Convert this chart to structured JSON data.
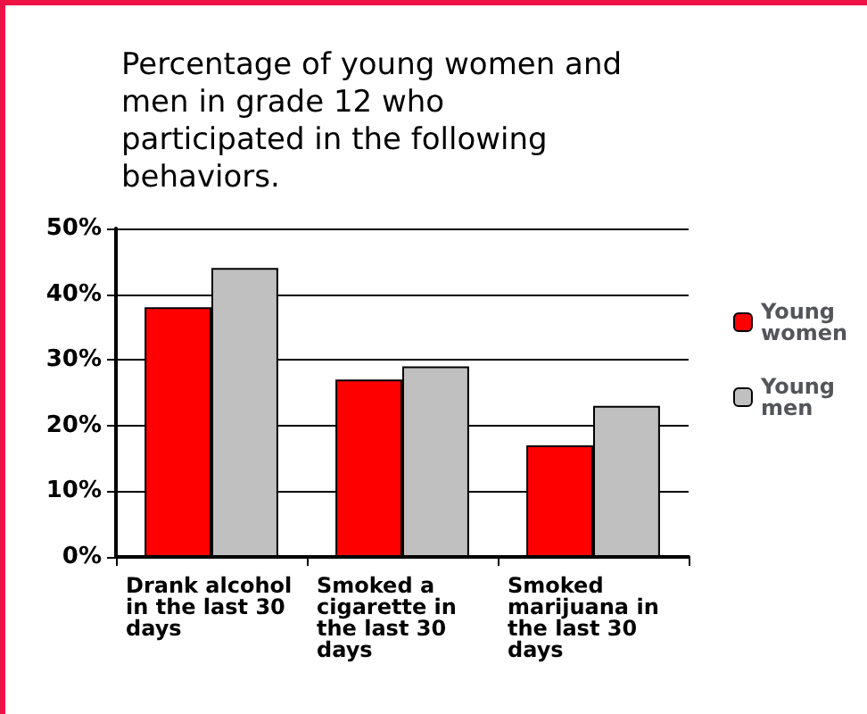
{
  "chart_data": {
    "type": "bar",
    "title": "Percentage of young women and men in grade 12 who participated in the following behaviors.",
    "categories": [
      "Drank alcohol in the last 30 days",
      "Smoked a cigarette in the last 30 days",
      "Smoked marijuana in the last 30 days"
    ],
    "series": [
      {
        "name": "Young women",
        "color": "#ff0000",
        "values": [
          38,
          27,
          17
        ]
      },
      {
        "name": "Young men",
        "color": "#c0c0c0",
        "values": [
          44,
          29,
          23
        ]
      }
    ],
    "ylim": [
      0,
      50
    ],
    "yticks": [
      {
        "value": 0,
        "label": "0%"
      },
      {
        "value": 10,
        "label": "10%"
      },
      {
        "value": 20,
        "label": "20%"
      },
      {
        "value": 30,
        "label": "30%"
      },
      {
        "value": 40,
        "label": "40%"
      },
      {
        "value": 50,
        "label": "50%"
      }
    ],
    "grid": "y",
    "legend": "right"
  }
}
